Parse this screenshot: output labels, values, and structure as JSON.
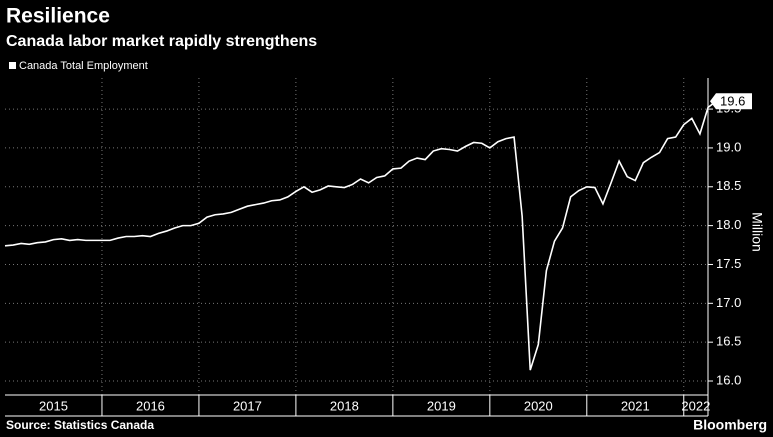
{
  "chart_data": {
    "type": "line",
    "title": "Resilience",
    "subtitle": "Canada labor market rapidly strengthens",
    "ylabel": "Million",
    "source": "Source: Statistics Canada",
    "brand": "Bloomberg",
    "legend": true,
    "grid": true,
    "xlim": [
      2015,
      2022.25
    ],
    "xticks": [
      2015,
      2016,
      2017,
      2018,
      2019,
      2020,
      2021,
      2022
    ],
    "ylim": [
      15.82,
      19.9
    ],
    "yticks": [
      {
        "value": 16,
        "label": "16.0"
      },
      16.5,
      {
        "value": 17,
        "label": "17.0"
      },
      17.5,
      {
        "value": 18,
        "label": "18.0"
      },
      18.5,
      {
        "value": 19,
        "label": "19.0"
      },
      19.5
    ],
    "series": [
      {
        "name": "Canada Total Employment",
        "color": "#ffffff",
        "values": [
          17.74,
          17.75,
          17.77,
          17.76,
          17.78,
          17.79,
          17.82,
          17.83,
          17.81,
          17.82,
          17.81,
          17.81,
          17.81,
          17.81,
          17.84,
          17.86,
          17.86,
          17.87,
          17.86,
          17.9,
          17.93,
          17.97,
          18.0,
          18.0,
          18.03,
          18.11,
          18.14,
          18.15,
          18.17,
          18.21,
          18.25,
          18.27,
          18.29,
          18.32,
          18.33,
          18.37,
          18.44,
          18.5,
          18.43,
          18.46,
          18.51,
          18.5,
          18.49,
          18.53,
          18.6,
          18.55,
          18.62,
          18.64,
          18.73,
          18.74,
          18.83,
          18.87,
          18.85,
          18.96,
          18.99,
          18.98,
          18.96,
          19.02,
          19.07,
          19.06,
          19.0,
          19.08,
          19.12,
          19.14,
          18.12,
          16.14,
          16.47,
          17.42,
          17.8,
          17.97,
          18.37,
          18.45,
          18.5,
          18.49,
          18.28,
          18.55,
          18.83,
          18.63,
          18.58,
          18.81,
          18.88,
          18.94,
          19.12,
          19.14,
          19.3,
          19.38,
          19.18,
          19.52,
          19.6
        ]
      }
    ]
  }
}
